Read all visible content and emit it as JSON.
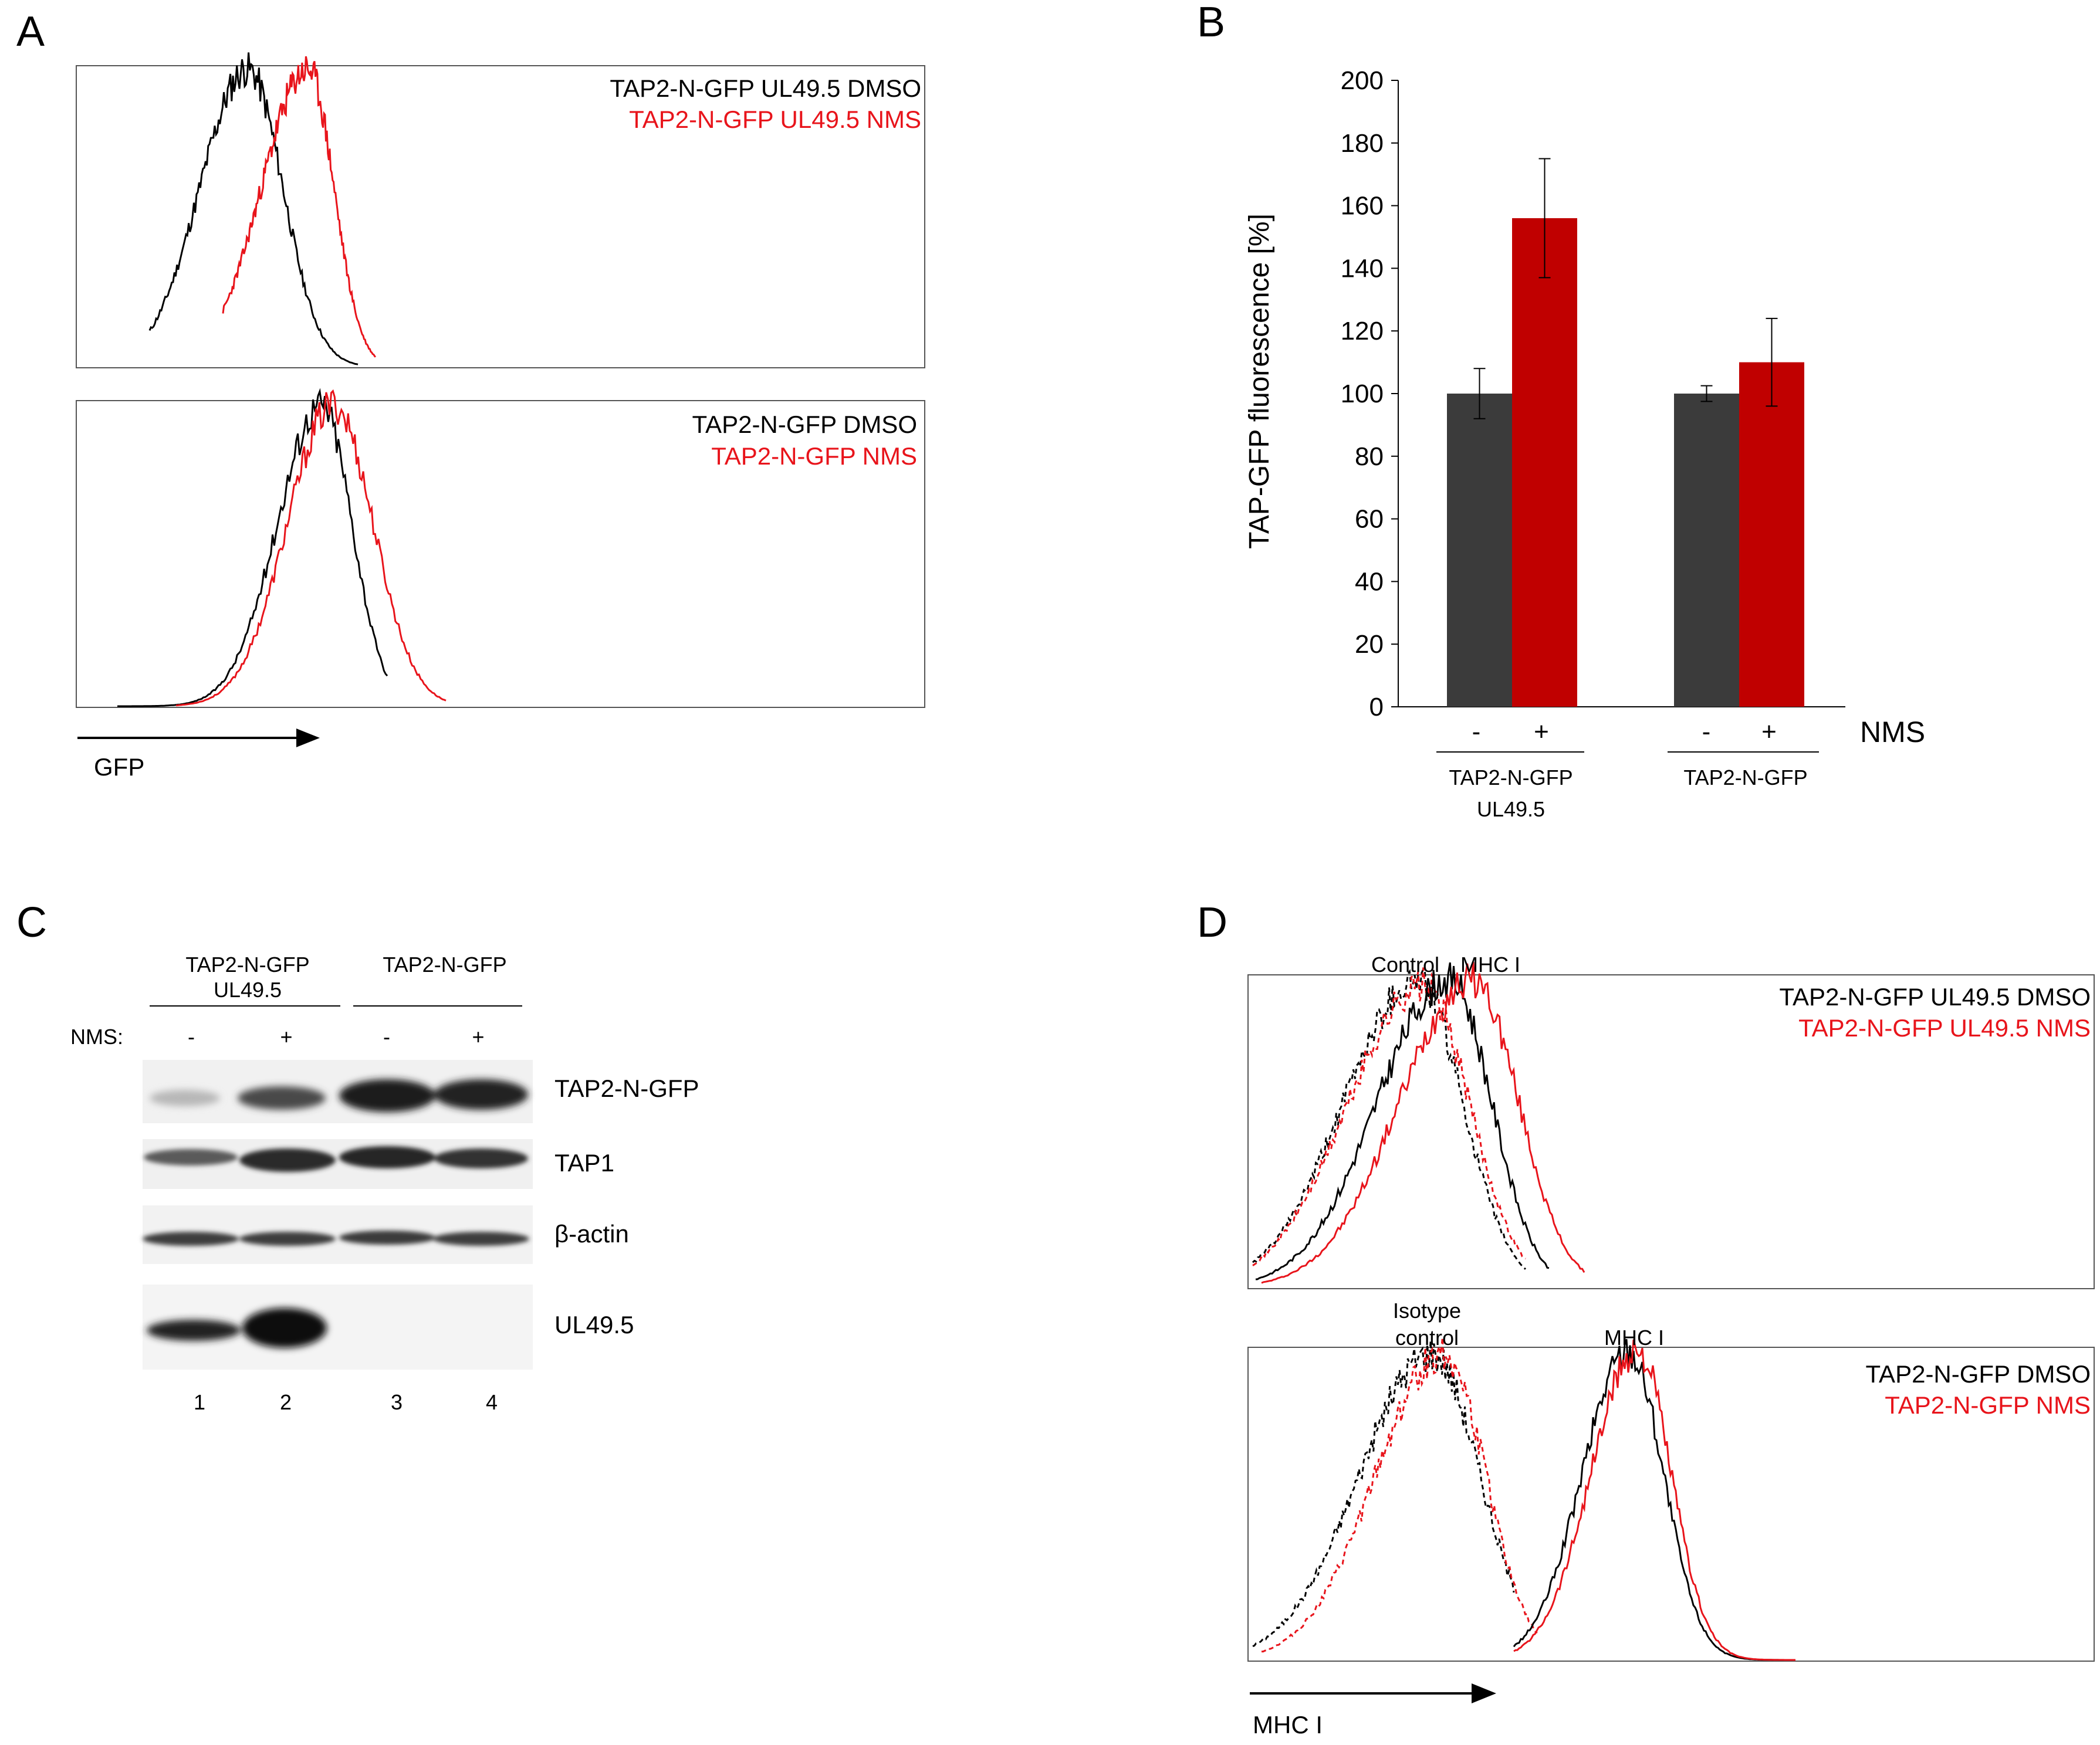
{
  "panels": {
    "A": {
      "letter": "A",
      "top_histogram": {
        "legend": [
          "TAP2-N-GFP UL49.5 DMSO",
          "TAP2-N-GFP UL49.5 NMS"
        ],
        "legend_colors": [
          "#000000",
          "#e8141b"
        ]
      },
      "bottom_histogram": {
        "legend": [
          "TAP2-N-GFP DMSO",
          "TAP2-N-GFP NMS"
        ],
        "legend_colors": [
          "#000000",
          "#e8141b"
        ]
      },
      "axis_label": "GFP"
    },
    "B": {
      "letter": "B",
      "nms_label": "NMS",
      "signs": [
        "-",
        "+",
        "-",
        "+"
      ],
      "group_labels": [
        [
          "TAP2-N-GFP",
          "UL49.5"
        ],
        [
          "TAP2-N-GFP"
        ]
      ]
    },
    "C": {
      "letter": "C",
      "group_labels": [
        [
          "TAP2-N-GFP",
          "UL49.5"
        ],
        [
          "TAP2-N-GFP"
        ]
      ],
      "nms_row_label": "NMS:",
      "signs": [
        "-",
        "+",
        "-",
        "+"
      ],
      "blot_labels": [
        "TAP2-N-GFP",
        "TAP1",
        "β-actin",
        "UL49.5"
      ],
      "lane_numbers": [
        "1",
        "2",
        "3",
        "4"
      ]
    },
    "D": {
      "letter": "D",
      "top_histogram": {
        "legend": [
          "TAP2-N-GFP UL49.5 DMSO",
          "TAP2-N-GFP UL49.5 NMS"
        ],
        "legend_colors": [
          "#000000",
          "#e8141b"
        ],
        "peak_labels": [
          "Control",
          "MHC I"
        ]
      },
      "bottom_histogram": {
        "legend": [
          "TAP2-N-GFP DMSO",
          "TAP2-N-GFP NMS"
        ],
        "legend_colors": [
          "#000000",
          "#e8141b"
        ],
        "peak_labels": [
          "Isotype",
          "control",
          "MHC I"
        ]
      },
      "axis_label": "MHC I"
    }
  },
  "chart_data": {
    "type": "bar",
    "title": "",
    "ylabel": "TAP-GFP fluorescence [%]",
    "xlabel": "NMS",
    "ylim": [
      0,
      200
    ],
    "yticks": [
      0,
      20,
      40,
      60,
      80,
      100,
      120,
      140,
      160,
      180,
      200
    ],
    "categories": [
      "TAP2-N-GFP UL49.5",
      "TAP2-N-GFP"
    ],
    "series": [
      {
        "name": "- (DMSO)",
        "color": "#3b3b3b",
        "values": [
          100,
          100
        ],
        "errors": [
          8,
          2.5
        ]
      },
      {
        "name": "+ (NMS)",
        "color": "#c00000",
        "values": [
          156,
          110
        ],
        "errors": [
          19,
          14
        ]
      }
    ]
  }
}
